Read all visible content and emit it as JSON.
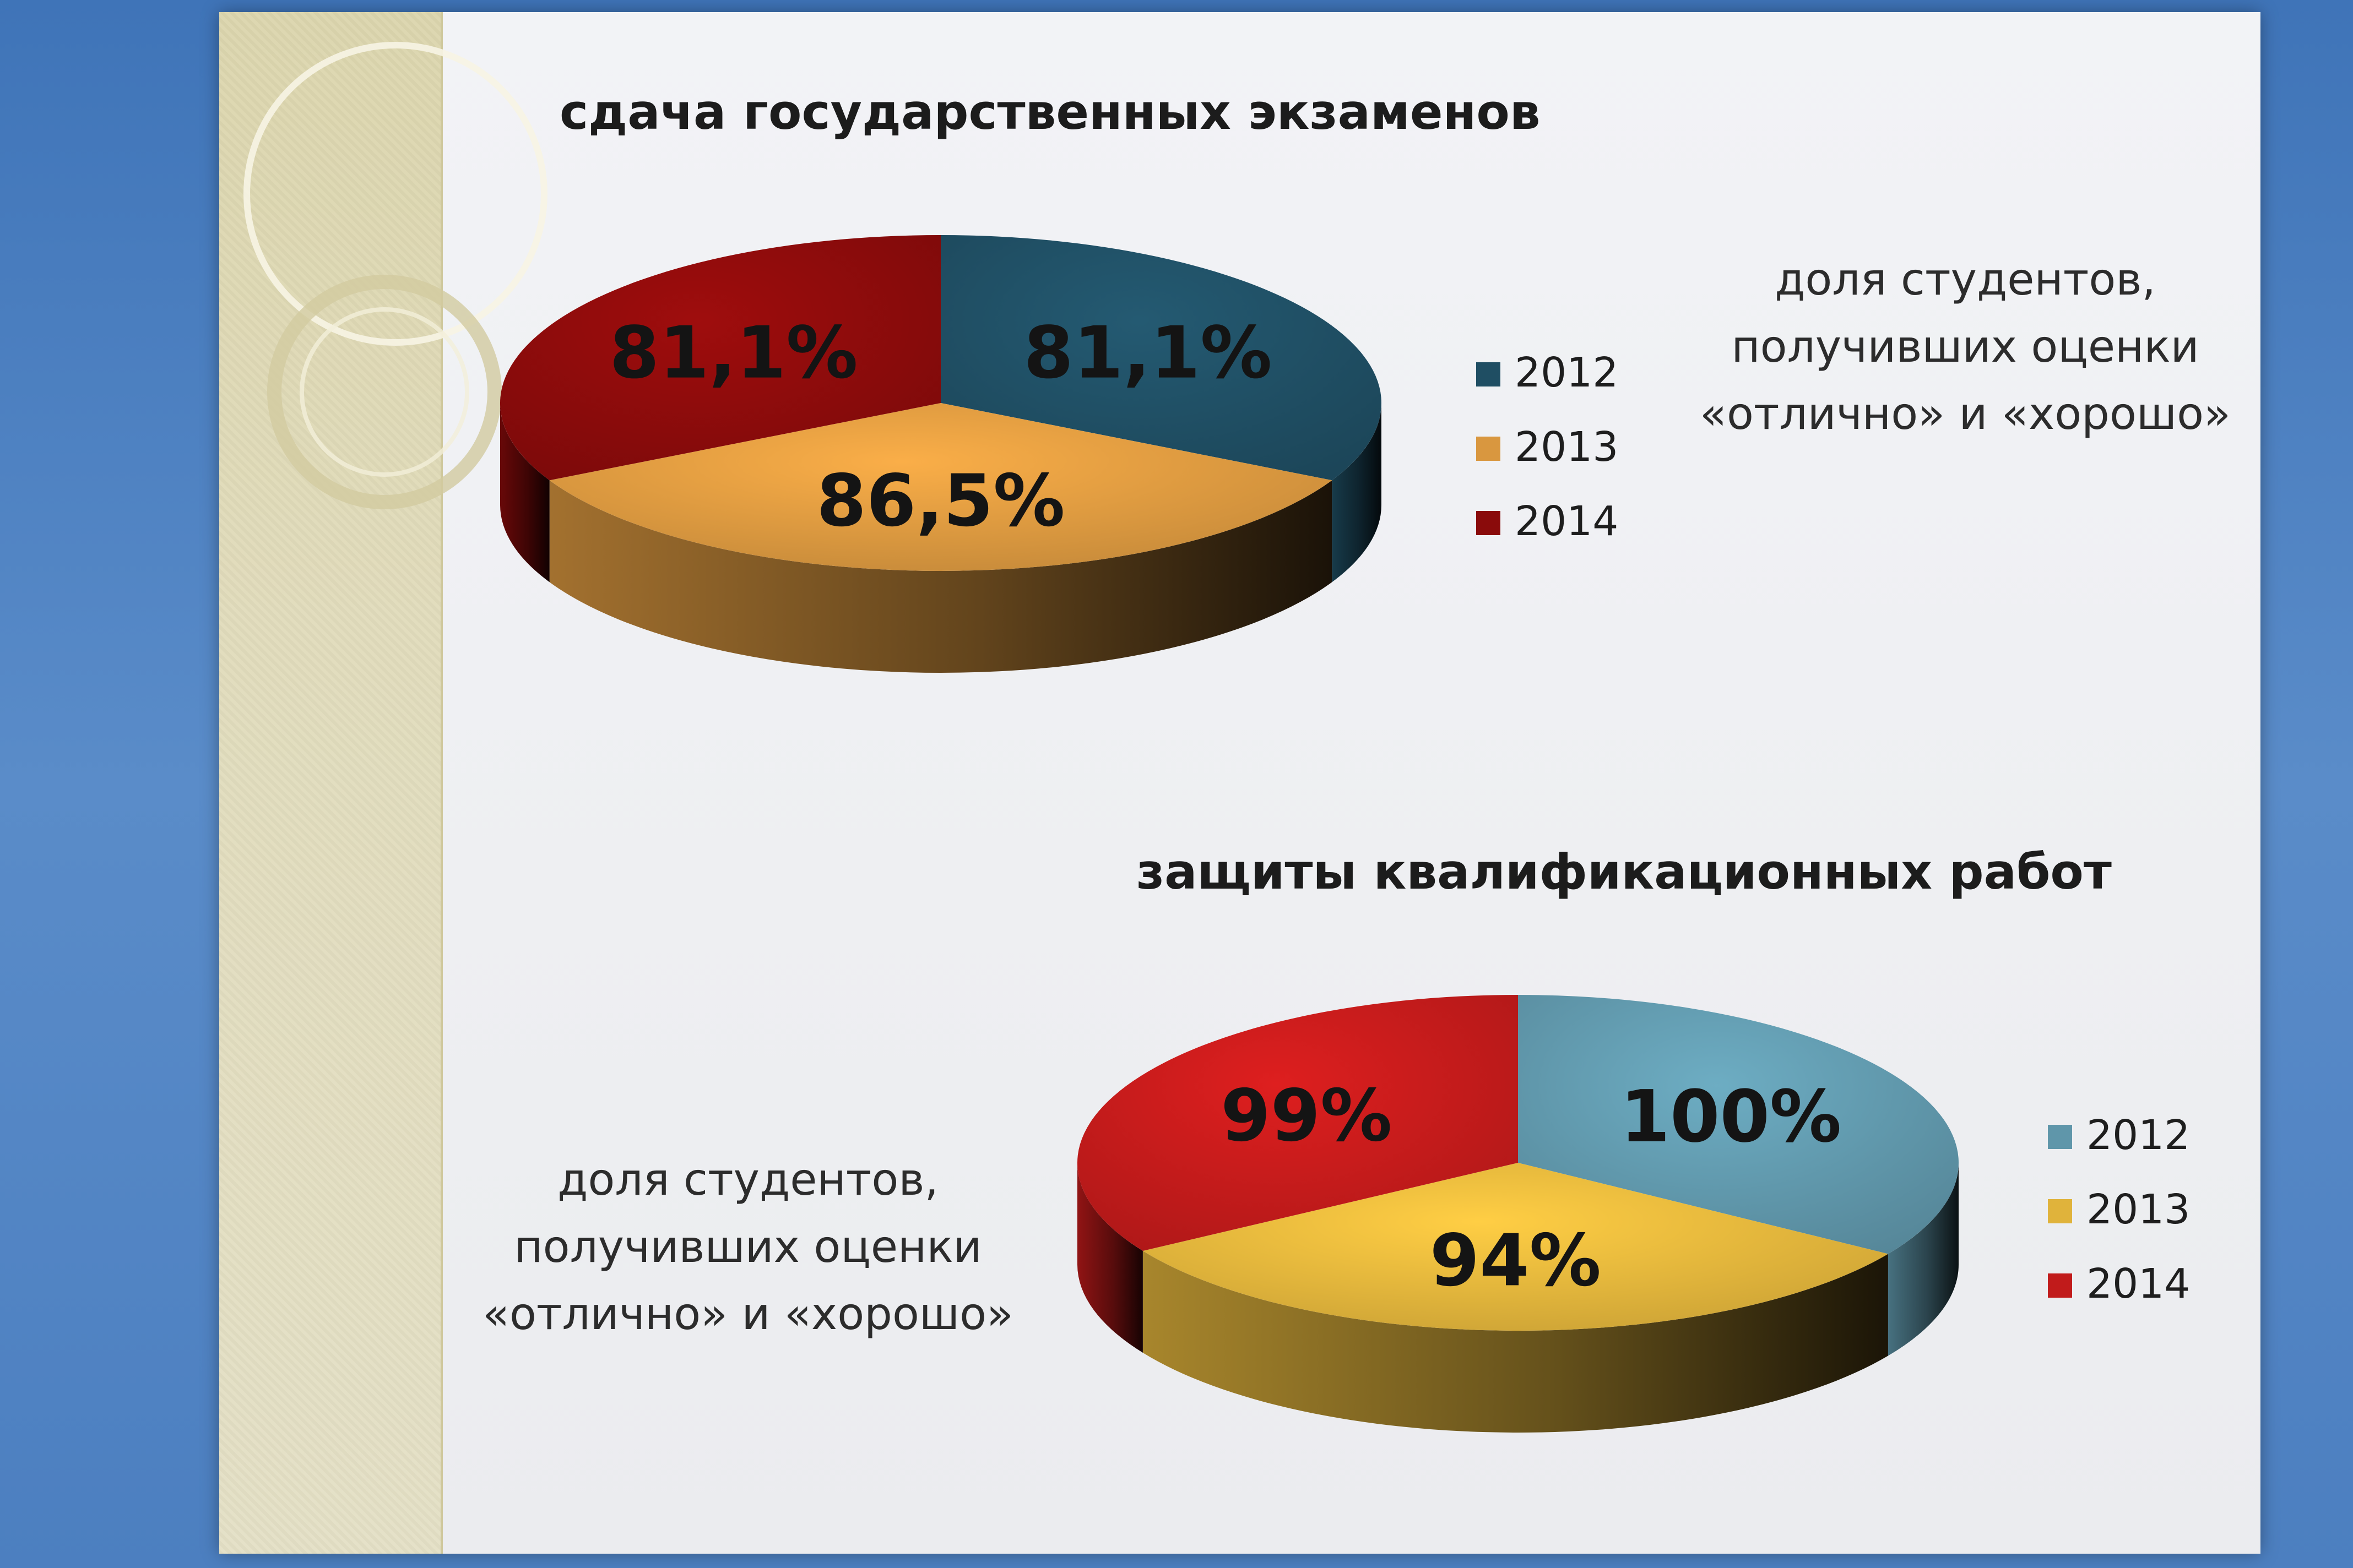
{
  "chart_data": [
    {
      "type": "pie",
      "title": "сдача государственных экзаменов",
      "categories": [
        "2012",
        "2013",
        "2014"
      ],
      "values": [
        81.1,
        86.5,
        81.1
      ],
      "data_labels": [
        "81,1%",
        "86,5%",
        "81,1%"
      ],
      "colors": [
        "#1f4e63",
        "#d9973f",
        "#8a0b0b"
      ],
      "legend": "right",
      "caption": [
        "доля студентов,",
        "получивших оценки",
        "«отлично» и «хорошо»"
      ]
    },
    {
      "type": "pie",
      "title": "защиты квалификационных работ",
      "categories": [
        "2012",
        "2013",
        "2014"
      ],
      "values": [
        100,
        94,
        99
      ],
      "data_labels": [
        "100%",
        "94%",
        "99%"
      ],
      "colors": [
        "#5f96aa",
        "#e0b33b",
        "#c11b1b"
      ],
      "legend": "right",
      "caption": [
        "доля студентов,",
        "получивших оценки",
        "«отлично» и «хорошо»"
      ]
    }
  ]
}
